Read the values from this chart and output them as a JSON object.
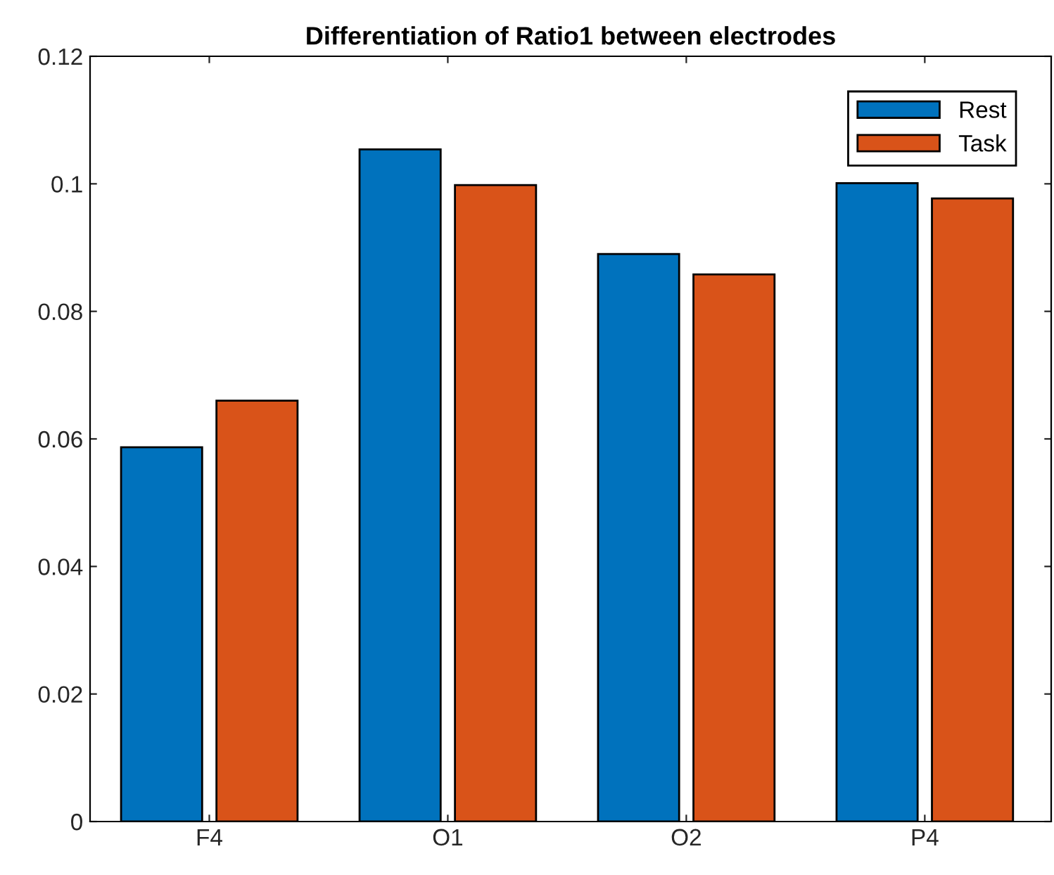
{
  "chart_data": {
    "type": "bar",
    "title": "Differentiation of Ratio1 between electrodes",
    "categories": [
      "F4",
      "O1",
      "O2",
      "P4"
    ],
    "series": [
      {
        "name": "Rest",
        "color": "#0072bd",
        "values": [
          0.0587,
          0.1054,
          0.089,
          0.1001
        ]
      },
      {
        "name": "Task",
        "color": "#d95319",
        "values": [
          0.066,
          0.0998,
          0.0858,
          0.0977
        ]
      }
    ],
    "ylim": [
      0,
      0.12
    ],
    "yticks": [
      0,
      0.02,
      0.04,
      0.06,
      0.08,
      0.1,
      0.12
    ],
    "grid": false,
    "legend": "top right"
  }
}
